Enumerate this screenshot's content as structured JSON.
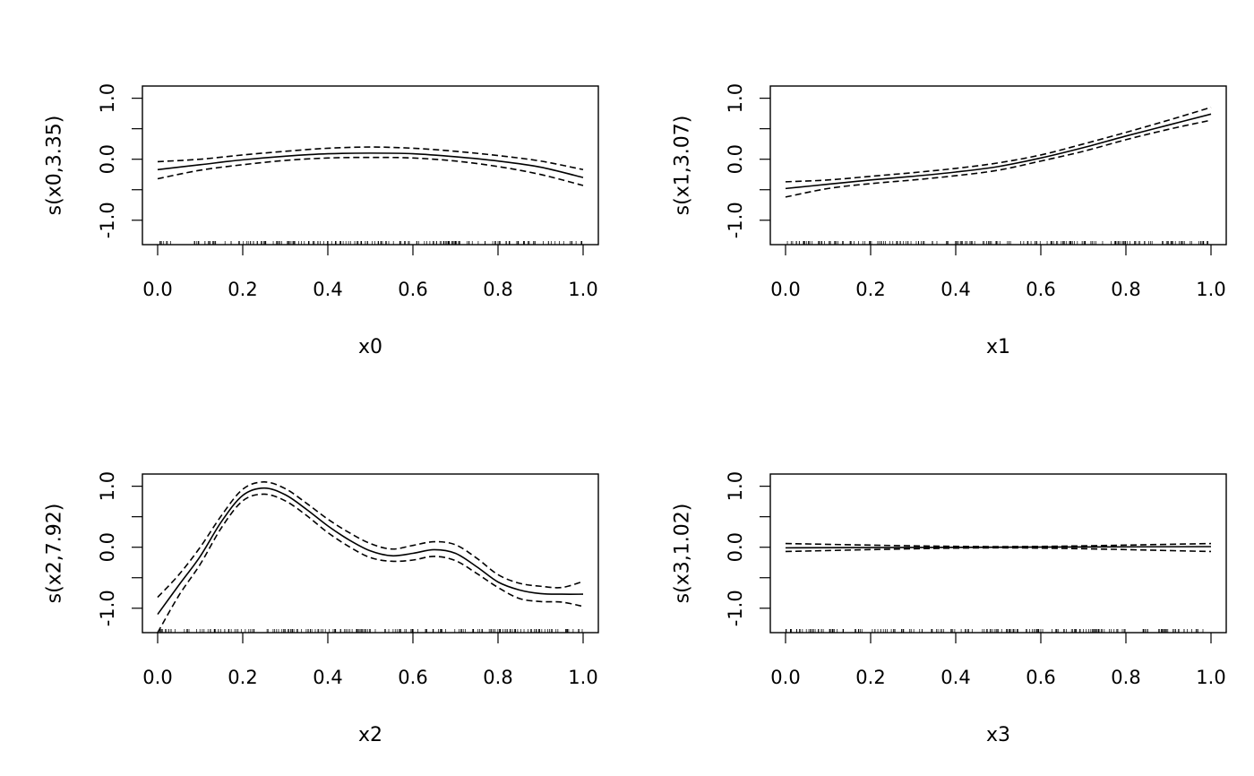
{
  "chart_data": [
    {
      "type": "line",
      "xlabel": "x0",
      "ylabel": "s(x0,3.35)",
      "xlim": [
        0,
        1
      ],
      "ylim": [
        -1.4,
        1.2
      ],
      "xticks": [
        "0.0",
        "0.2",
        "0.4",
        "0.6",
        "0.8",
        "1.0"
      ],
      "yticks": [
        "-1.0",
        "-0.5",
        "0.0",
        "0.5",
        "1.0"
      ],
      "ytick_labels": [
        "-1.0",
        "",
        "0.0",
        "",
        "1.0"
      ],
      "x": [
        0,
        0.1,
        0.2,
        0.3,
        0.4,
        0.5,
        0.6,
        0.7,
        0.8,
        0.9,
        1.0
      ],
      "fit": [
        -0.17,
        -0.09,
        -0.01,
        0.05,
        0.09,
        0.1,
        0.09,
        0.04,
        -0.03,
        -0.13,
        -0.3
      ],
      "upper": [
        -0.04,
        0.0,
        0.07,
        0.13,
        0.18,
        0.2,
        0.18,
        0.13,
        0.06,
        -0.03,
        -0.17
      ],
      "lower": [
        -0.32,
        -0.18,
        -0.09,
        -0.02,
        0.02,
        0.03,
        0.02,
        -0.03,
        -0.12,
        -0.25,
        -0.43
      ],
      "rug": true
    },
    {
      "type": "line",
      "xlabel": "x1",
      "ylabel": "s(x1,3.07)",
      "xlim": [
        0,
        1
      ],
      "ylim": [
        -1.4,
        1.2
      ],
      "xticks": [
        "0.0",
        "0.2",
        "0.4",
        "0.6",
        "0.8",
        "1.0"
      ],
      "yticks": [
        "-1.0",
        "-0.5",
        "0.0",
        "0.5",
        "1.0"
      ],
      "ytick_labels": [
        "-1.0",
        "",
        "0.0",
        "",
        "1.0"
      ],
      "x": [
        0,
        0.1,
        0.2,
        0.3,
        0.4,
        0.5,
        0.6,
        0.7,
        0.8,
        0.9,
        1.0
      ],
      "fit": [
        -0.48,
        -0.41,
        -0.34,
        -0.28,
        -0.21,
        -0.12,
        0.02,
        0.19,
        0.38,
        0.56,
        0.74
      ],
      "upper": [
        -0.37,
        -0.34,
        -0.28,
        -0.22,
        -0.15,
        -0.06,
        0.07,
        0.25,
        0.44,
        0.64,
        0.85
      ],
      "lower": [
        -0.62,
        -0.48,
        -0.4,
        -0.34,
        -0.27,
        -0.18,
        -0.03,
        0.13,
        0.32,
        0.49,
        0.64
      ],
      "rug": true
    },
    {
      "type": "line",
      "xlabel": "x2",
      "ylabel": "s(x2,7.92)",
      "xlim": [
        0,
        1
      ],
      "ylim": [
        -1.4,
        1.2
      ],
      "xticks": [
        "0.0",
        "0.2",
        "0.4",
        "0.6",
        "0.8",
        "1.0"
      ],
      "yticks": [
        "-1.0",
        "-0.5",
        "0.0",
        "0.5",
        "1.0"
      ],
      "ytick_labels": [
        "-1.0",
        "",
        "0.0",
        "",
        "1.0"
      ],
      "x": [
        0,
        0.05,
        0.1,
        0.15,
        0.2,
        0.25,
        0.3,
        0.35,
        0.4,
        0.45,
        0.5,
        0.55,
        0.6,
        0.65,
        0.7,
        0.75,
        0.8,
        0.85,
        0.9,
        0.95,
        1.0
      ],
      "fit": [
        -1.1,
        -0.62,
        -0.15,
        0.42,
        0.85,
        0.97,
        0.86,
        0.62,
        0.35,
        0.12,
        -0.06,
        -0.14,
        -0.1,
        -0.04,
        -0.1,
        -0.32,
        -0.57,
        -0.7,
        -0.76,
        -0.77,
        -0.77
      ],
      "upper": [
        -0.82,
        -0.45,
        0.0,
        0.52,
        0.95,
        1.07,
        0.96,
        0.72,
        0.46,
        0.24,
        0.06,
        -0.03,
        0.03,
        0.09,
        0.04,
        -0.18,
        -0.45,
        -0.59,
        -0.64,
        -0.66,
        -0.56
      ],
      "lower": [
        -1.4,
        -0.79,
        -0.28,
        0.32,
        0.76,
        0.87,
        0.76,
        0.52,
        0.24,
        0.01,
        -0.17,
        -0.23,
        -0.21,
        -0.15,
        -0.22,
        -0.43,
        -0.66,
        -0.84,
        -0.89,
        -0.9,
        -0.97
      ],
      "rug": true
    },
    {
      "type": "line",
      "xlabel": "x3",
      "ylabel": "s(x3,1.02)",
      "xlim": [
        0,
        1
      ],
      "ylim": [
        -1.4,
        1.2
      ],
      "xticks": [
        "0.0",
        "0.2",
        "0.4",
        "0.6",
        "0.8",
        "1.0"
      ],
      "yticks": [
        "-1.0",
        "-0.5",
        "0.0",
        "0.5",
        "1.0"
      ],
      "ytick_labels": [
        "-1.0",
        "",
        "0.0",
        "",
        "1.0"
      ],
      "x": [
        0,
        0.5,
        1.0
      ],
      "fit": [
        -0.01,
        0.0,
        0.01
      ],
      "upper": [
        0.06,
        0.01,
        0.06
      ],
      "lower": [
        -0.07,
        -0.01,
        -0.07
      ],
      "rug": true
    }
  ]
}
